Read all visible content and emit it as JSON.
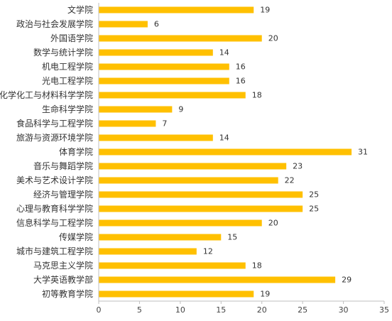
{
  "chart_data": {
    "type": "bar",
    "orientation": "horizontal",
    "categories": [
      "文学院",
      "政治与社会发展学院",
      "外国语学院",
      "数学与统计学院",
      "机电工程学院",
      "光电工程学院",
      "化学化工与材料科学学院",
      "生命科学学院",
      "食品科学与工程学院",
      "旅游与资源环境学院",
      "体育学院",
      "音乐与舞蹈学院",
      "美术与艺术设计学院",
      "经济与管理学院",
      "心理与教育科学学院",
      "信息科学与工程学院",
      "传媒学院",
      "城市与建筑工程学院",
      "马克思主义学院",
      "大学英语教学部",
      "初等教育学院"
    ],
    "values": [
      19,
      6,
      20,
      14,
      16,
      16,
      18,
      9,
      7,
      14,
      31,
      23,
      22,
      25,
      25,
      20,
      15,
      12,
      18,
      29,
      19
    ],
    "xlim": [
      0,
      35
    ],
    "xticks": [
      "0",
      "5",
      "10",
      "15",
      "20",
      "25",
      "30",
      "35"
    ],
    "bar_color": "#FFC000",
    "data_labels": true,
    "grid": false,
    "legend": "none"
  }
}
